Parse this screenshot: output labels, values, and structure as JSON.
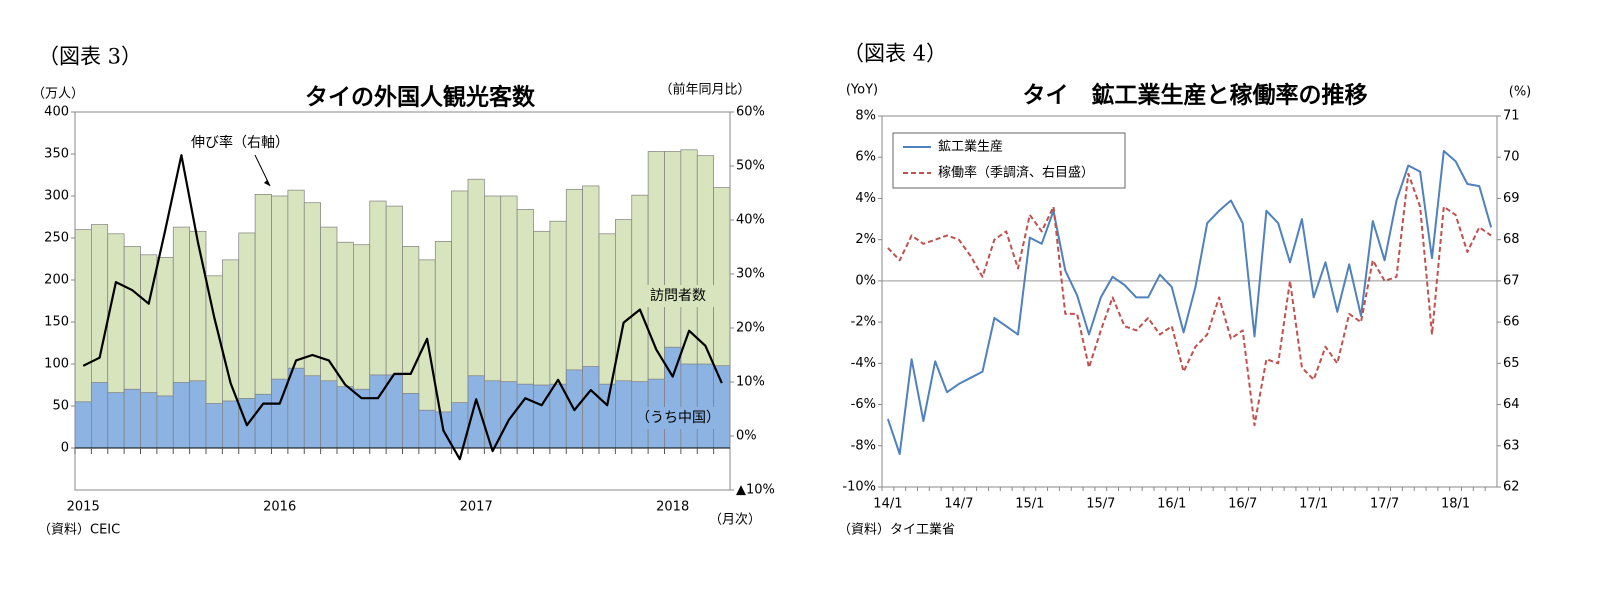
{
  "chart_data": [
    {
      "type": "bar",
      "figure_label": "（図表 3）",
      "title": "タイの外国人観光客数",
      "y_label": "（万人）",
      "y2_label": "（前年同月比）",
      "x_label": "（月次）",
      "source": "（資料）CEIC",
      "categories": [
        "2015",
        null,
        null,
        null,
        null,
        null,
        null,
        null,
        null,
        null,
        null,
        null,
        "2016",
        null,
        null,
        null,
        null,
        null,
        null,
        null,
        null,
        null,
        null,
        null,
        "2017",
        null,
        null,
        null,
        null,
        null,
        null,
        null,
        null,
        null,
        null,
        null,
        "2018",
        null,
        null,
        null
      ],
      "ylim": [
        -50,
        400
      ],
      "yticks": [
        0,
        50,
        100,
        150,
        200,
        250,
        300,
        350,
        400
      ],
      "y2lim": [
        -10,
        60
      ],
      "y2ticks": [
        {
          "value": -10,
          "label": "▲10%"
        },
        {
          "value": 0,
          "label": "0%"
        },
        {
          "value": 10,
          "label": "10%"
        },
        {
          "value": 20,
          "label": "20%"
        },
        {
          "value": 30,
          "label": "30%"
        },
        {
          "value": 40,
          "label": "40%"
        },
        {
          "value": 50,
          "label": "50%"
        },
        {
          "value": 60,
          "label": "60%"
        }
      ],
      "series": [
        {
          "name": "訪問者数",
          "type": "bar",
          "color": "#d7e4bd",
          "values": [
            260,
            266,
            255,
            240,
            230,
            227,
            263,
            258,
            205,
            224,
            256,
            302,
            300,
            307,
            292,
            263,
            245,
            242,
            294,
            288,
            240,
            224,
            246,
            306,
            320,
            300,
            300,
            284,
            258,
            270,
            308,
            312,
            255,
            272,
            301,
            353,
            353,
            355,
            348,
            310
          ]
        },
        {
          "name": "（うち中国）",
          "type": "bar",
          "color": "#8db3e2",
          "values": [
            55,
            78,
            66,
            70,
            66,
            62,
            78,
            80,
            53,
            56,
            59,
            64,
            82,
            95,
            86,
            80,
            73,
            70,
            87,
            87,
            65,
            45,
            43,
            54,
            86,
            80,
            79,
            76,
            75,
            76,
            93,
            97,
            76,
            80,
            79,
            82,
            120,
            100,
            100,
            98
          ]
        },
        {
          "name": "伸び率（右軸）",
          "type": "line",
          "axis": "y2",
          "color": "#000000",
          "values": [
            13,
            14.5,
            28.5,
            27,
            24.5,
            38,
            52,
            36,
            22,
            9.8,
            2,
            6,
            6,
            14,
            15,
            14,
            9.5,
            7,
            7,
            11.5,
            11.5,
            18,
            1,
            -4.3,
            6.8,
            -2.8,
            3,
            7,
            5.7,
            10.4,
            4.8,
            8.5,
            5.7,
            21,
            23.4,
            16,
            11,
            19.5,
            16.7,
            9.8
          ]
        }
      ]
    },
    {
      "type": "line",
      "figure_label": "（図表 4）",
      "title": "タイ　鉱工業生産と稼働率の推移",
      "y_label": "(YoY)",
      "y2_label": "(%)",
      "source": "（資料）タイ工業省",
      "legend": "upper left",
      "categories": [
        "14/1",
        null,
        null,
        null,
        null,
        null,
        "14/7",
        null,
        null,
        null,
        null,
        null,
        "15/1",
        null,
        null,
        null,
        null,
        null,
        "15/7",
        null,
        null,
        null,
        null,
        null,
        "16/1",
        null,
        null,
        null,
        null,
        null,
        "16/7",
        null,
        null,
        null,
        null,
        null,
        "17/1",
        null,
        null,
        null,
        null,
        null,
        "17/7",
        null,
        null,
        null,
        null,
        null,
        "18/1",
        null,
        null,
        null
      ],
      "ylim": [
        -10,
        8
      ],
      "yticks": [
        {
          "value": -10,
          "label": "-10%"
        },
        {
          "value": -8,
          "label": "-8%"
        },
        {
          "value": -6,
          "label": "-6%"
        },
        {
          "value": -4,
          "label": "-4%"
        },
        {
          "value": -2,
          "label": "-2%"
        },
        {
          "value": 0,
          "label": "0%"
        },
        {
          "value": 2,
          "label": "2%"
        },
        {
          "value": 4,
          "label": "4%"
        },
        {
          "value": 6,
          "label": "6%"
        },
        {
          "value": 8,
          "label": "8%"
        }
      ],
      "y2lim": [
        62,
        71
      ],
      "y2ticks": [
        62,
        63,
        64,
        65,
        66,
        67,
        68,
        69,
        70,
        71
      ],
      "series": [
        {
          "name": "鉱工業生産",
          "type": "line",
          "color": "#4f81bd",
          "values": [
            -6.7,
            -8.4,
            -3.8,
            -6.8,
            -3.9,
            -5.4,
            -5.0,
            -4.7,
            -4.4,
            -1.8,
            -2.2,
            -2.6,
            2.1,
            1.8,
            3.4,
            0.5,
            -0.7,
            -2.6,
            -0.8,
            0.2,
            -0.2,
            -0.8,
            -0.8,
            0.3,
            -0.3,
            -2.5,
            -0.3,
            2.8,
            3.4,
            3.9,
            2.8,
            -2.7,
            3.4,
            2.8,
            0.9,
            3.0,
            -0.8,
            0.9,
            -1.5,
            0.8,
            -1.7,
            2.9,
            1.0,
            3.9,
            5.6,
            5.3,
            1.1,
            6.3,
            5.8,
            4.7,
            4.6,
            2.6
          ]
        },
        {
          "name": "稼働率（季調済、右目盛）",
          "type": "line",
          "axis": "y2",
          "color": "#c0504d",
          "dash": true,
          "values": [
            67.8,
            67.5,
            68.1,
            67.9,
            68.0,
            68.1,
            68.0,
            67.6,
            67.1,
            68.0,
            68.2,
            67.3,
            68.6,
            68.2,
            68.8,
            66.2,
            66.2,
            64.9,
            65.8,
            66.6,
            65.9,
            65.8,
            66.1,
            65.7,
            65.9,
            64.8,
            65.4,
            65.7,
            66.6,
            65.6,
            65.8,
            63.5,
            65.1,
            65.0,
            67.0,
            64.9,
            64.6,
            65.4,
            65.0,
            66.2,
            66.0,
            67.5,
            67.0,
            67.1,
            69.6,
            68.8,
            65.7,
            68.8,
            68.6,
            67.7,
            68.3,
            68.1
          ]
        }
      ]
    }
  ]
}
